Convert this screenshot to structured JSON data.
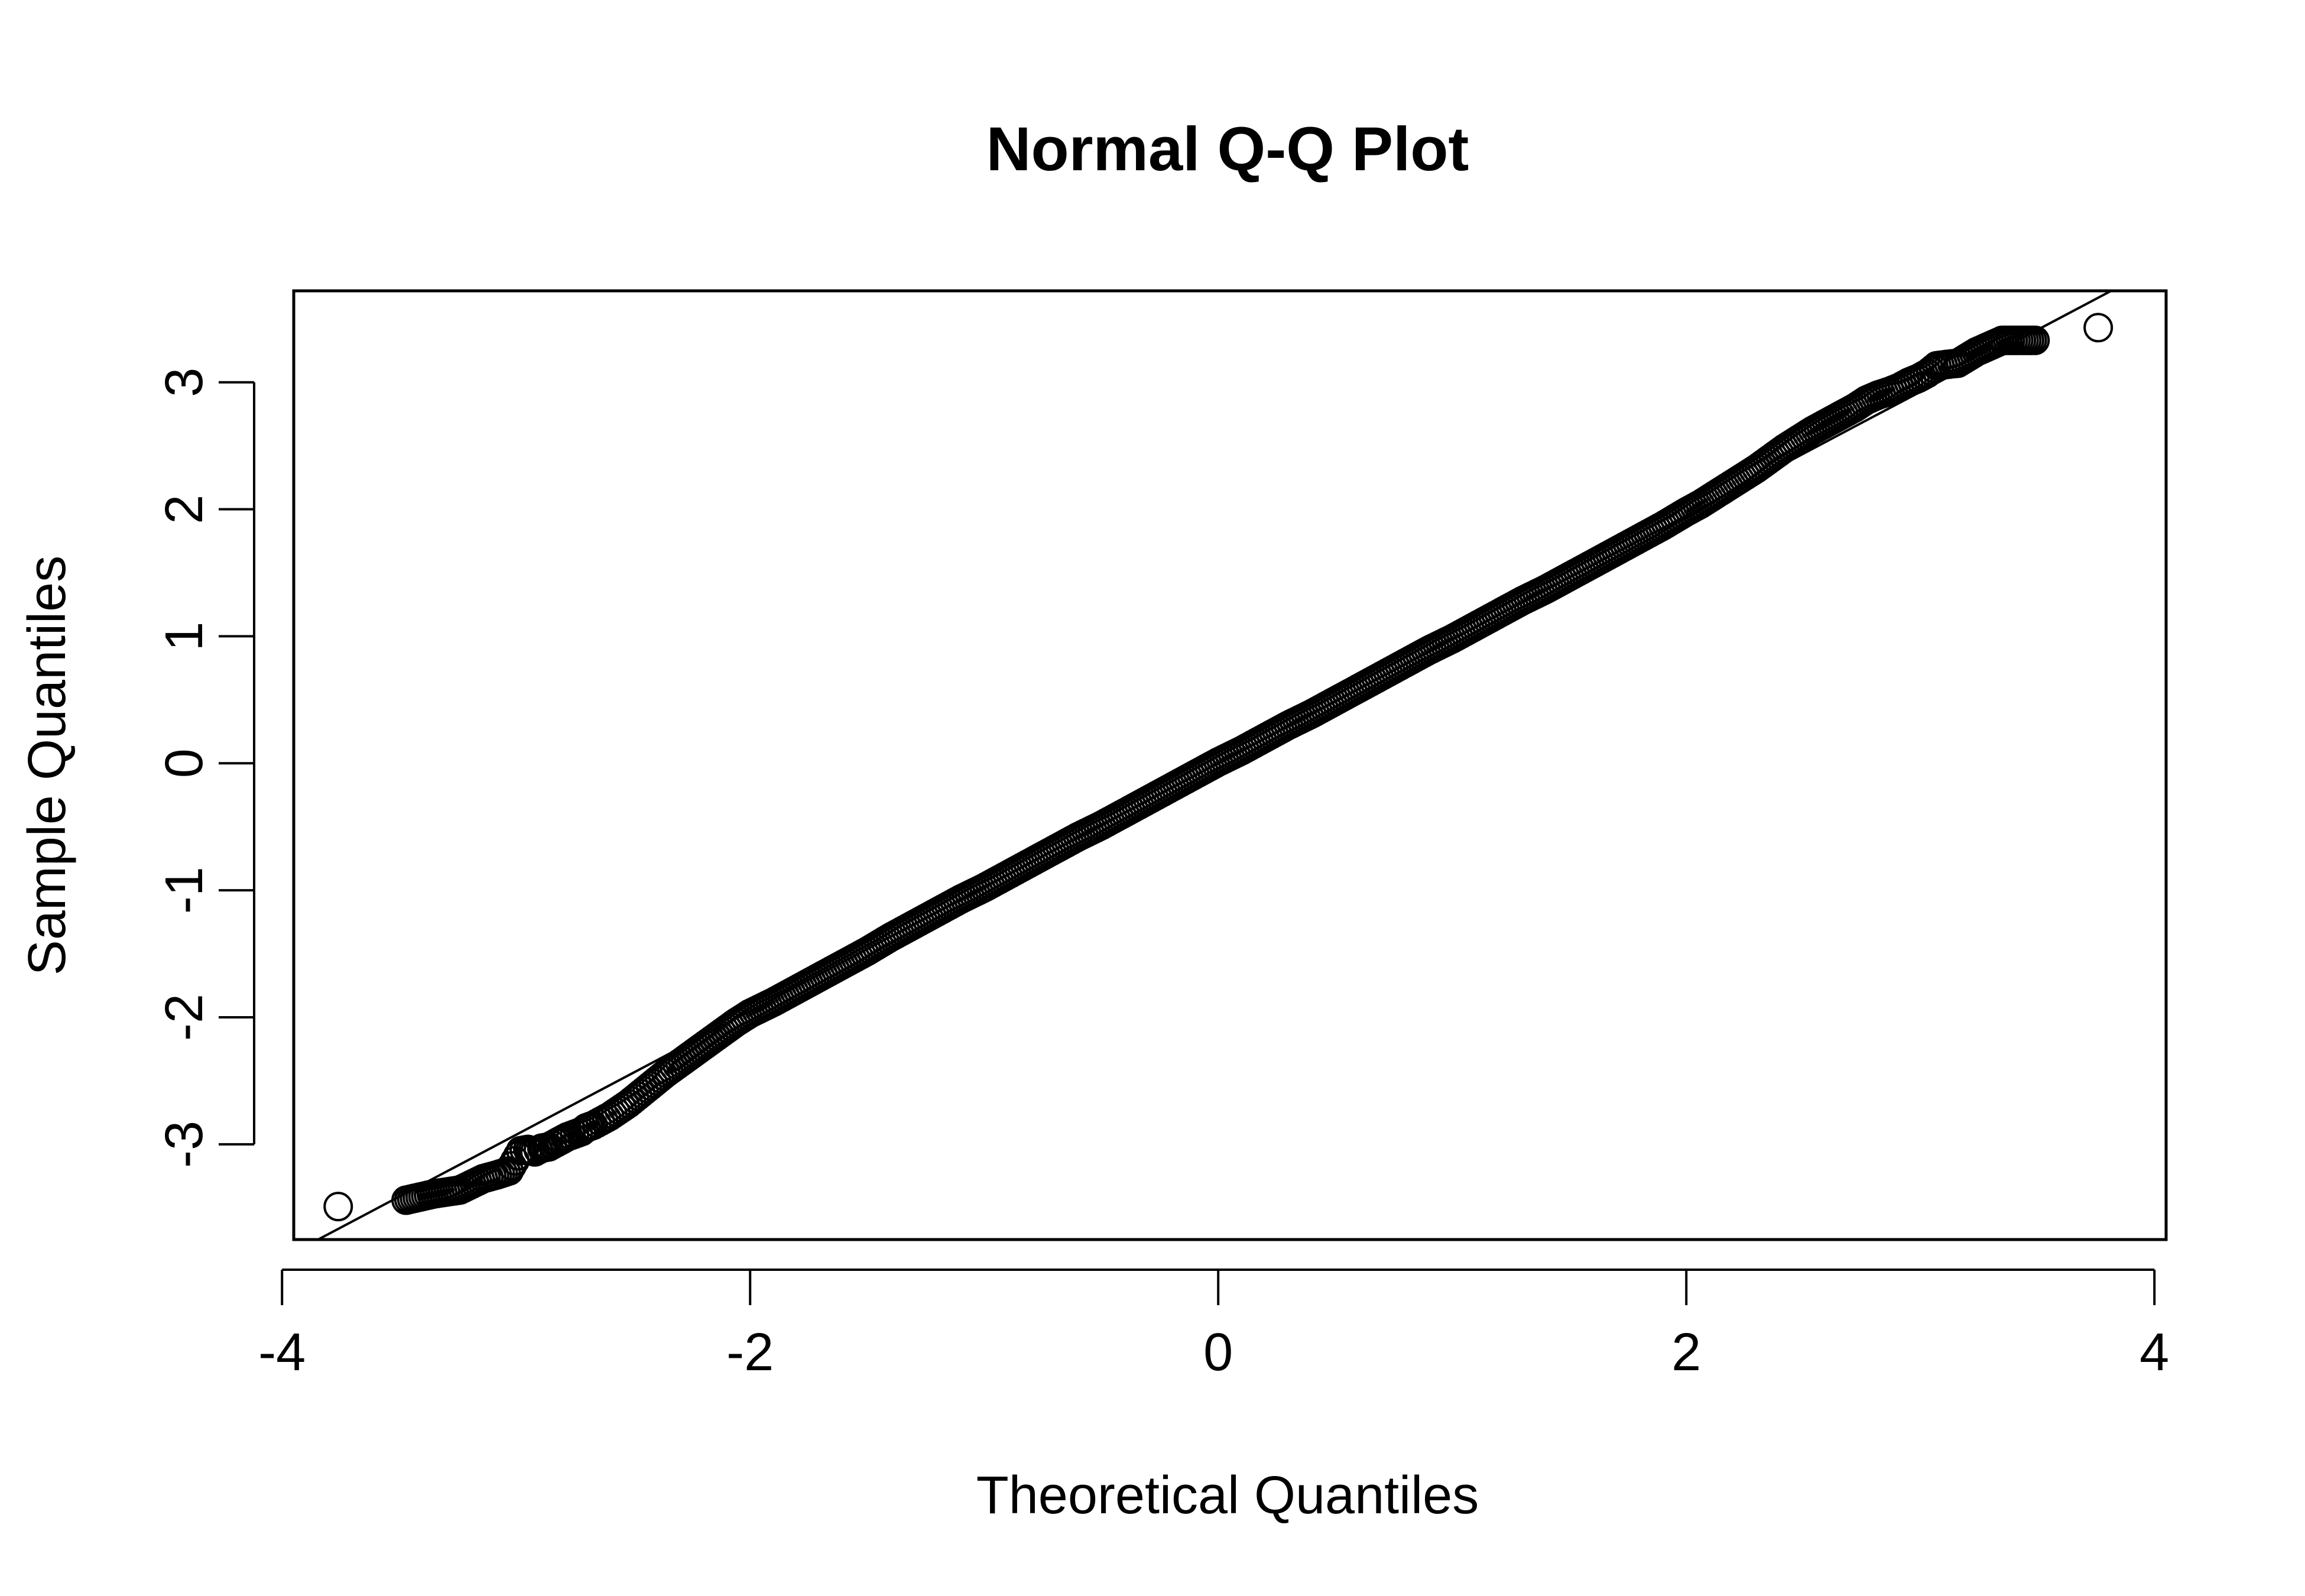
{
  "chart_data": {
    "type": "scatter",
    "title": "Normal Q-Q Plot",
    "xlabel": "Theoretical Quantiles",
    "ylabel": "Sample Quantiles",
    "xlim": [
      -3.95,
      4.05
    ],
    "ylim": [
      -3.75,
      3.72
    ],
    "xticks": [
      -4,
      -2,
      0,
      2,
      4
    ],
    "yticks": [
      -3,
      -2,
      -1,
      0,
      1,
      2,
      3
    ],
    "xtick_labels": [
      "-4",
      "-2",
      "0",
      "2",
      "4"
    ],
    "ytick_labels": [
      "-3",
      "-2",
      "-1",
      "0",
      "1",
      "2",
      "3"
    ],
    "grid": false,
    "legend": "none",
    "marker": "open-circle",
    "reference_line": {
      "slope": 0.975,
      "intercept": 0.0
    },
    "series": [
      {
        "points": [
          [
            -3.76,
            -3.49
          ],
          [
            -3.47,
            -3.44
          ],
          [
            -3.35,
            -3.39
          ],
          [
            -3.24,
            -3.36
          ],
          [
            -3.14,
            -3.27
          ],
          [
            -3.08,
            -3.24
          ],
          [
            -3.03,
            -3.21
          ],
          [
            -2.98,
            -3.05
          ],
          [
            -2.95,
            -3.04
          ],
          [
            -2.92,
            -3.06
          ],
          [
            -2.89,
            -3.03
          ],
          [
            -2.86,
            -3.02
          ],
          [
            -2.83,
            -2.99
          ],
          [
            -2.8,
            -2.96
          ],
          [
            -2.78,
            -2.94
          ],
          [
            -2.75,
            -2.92
          ],
          [
            -2.72,
            -2.9
          ],
          [
            -2.7,
            -2.87
          ],
          [
            -2.67,
            -2.85
          ],
          [
            -2.64,
            -2.82
          ],
          [
            -2.6,
            -2.78
          ],
          [
            -2.56,
            -2.73
          ],
          [
            -2.52,
            -2.68
          ],
          [
            -2.48,
            -2.62
          ],
          [
            -2.44,
            -2.56
          ],
          [
            -2.4,
            -2.5
          ],
          [
            -2.36,
            -2.44
          ],
          [
            -2.3,
            -2.36
          ],
          [
            -2.24,
            -2.28
          ],
          [
            -2.18,
            -2.2
          ],
          [
            -2.12,
            -2.12
          ],
          [
            -2.06,
            -2.04
          ],
          [
            -2.0,
            -1.97
          ],
          [
            -1.9,
            -1.88
          ],
          [
            -1.8,
            -1.78
          ],
          [
            -1.7,
            -1.68
          ],
          [
            -1.6,
            -1.58
          ],
          [
            -1.5,
            -1.48
          ],
          [
            -1.4,
            -1.37
          ],
          [
            -1.3,
            -1.27
          ],
          [
            -1.2,
            -1.17
          ],
          [
            -1.1,
            -1.07
          ],
          [
            -1.0,
            -0.98
          ],
          [
            -0.9,
            -0.88
          ],
          [
            -0.8,
            -0.78
          ],
          [
            -0.7,
            -0.68
          ],
          [
            -0.6,
            -0.58
          ],
          [
            -0.5,
            -0.49
          ],
          [
            -0.4,
            -0.39
          ],
          [
            -0.3,
            -0.29
          ],
          [
            -0.2,
            -0.19
          ],
          [
            -0.1,
            -0.09
          ],
          [
            0.0,
            0.01
          ],
          [
            0.1,
            0.1
          ],
          [
            0.2,
            0.2
          ],
          [
            0.3,
            0.3
          ],
          [
            0.4,
            0.39
          ],
          [
            0.5,
            0.49
          ],
          [
            0.6,
            0.59
          ],
          [
            0.7,
            0.69
          ],
          [
            0.8,
            0.79
          ],
          [
            0.9,
            0.89
          ],
          [
            1.0,
            0.98
          ],
          [
            1.1,
            1.08
          ],
          [
            1.2,
            1.18
          ],
          [
            1.3,
            1.28
          ],
          [
            1.4,
            1.37
          ],
          [
            1.5,
            1.47
          ],
          [
            1.6,
            1.57
          ],
          [
            1.7,
            1.67
          ],
          [
            1.8,
            1.77
          ],
          [
            1.9,
            1.87
          ],
          [
            2.0,
            1.98
          ],
          [
            2.06,
            2.04
          ],
          [
            2.12,
            2.11
          ],
          [
            2.18,
            2.18
          ],
          [
            2.24,
            2.25
          ],
          [
            2.3,
            2.32
          ],
          [
            2.36,
            2.4
          ],
          [
            2.42,
            2.48
          ],
          [
            2.48,
            2.55
          ],
          [
            2.54,
            2.62
          ],
          [
            2.6,
            2.68
          ],
          [
            2.66,
            2.74
          ],
          [
            2.72,
            2.8
          ],
          [
            2.77,
            2.86
          ],
          [
            2.82,
            2.9
          ],
          [
            2.87,
            2.93
          ],
          [
            2.91,
            2.96
          ],
          [
            2.95,
            3.0
          ],
          [
            2.99,
            3.03
          ],
          [
            3.03,
            3.07
          ],
          [
            3.07,
            3.13
          ],
          [
            3.11,
            3.14
          ],
          [
            3.16,
            3.15
          ],
          [
            3.24,
            3.24
          ],
          [
            3.35,
            3.33
          ],
          [
            3.49,
            3.33
          ],
          [
            3.76,
            3.43
          ]
        ]
      }
    ]
  }
}
